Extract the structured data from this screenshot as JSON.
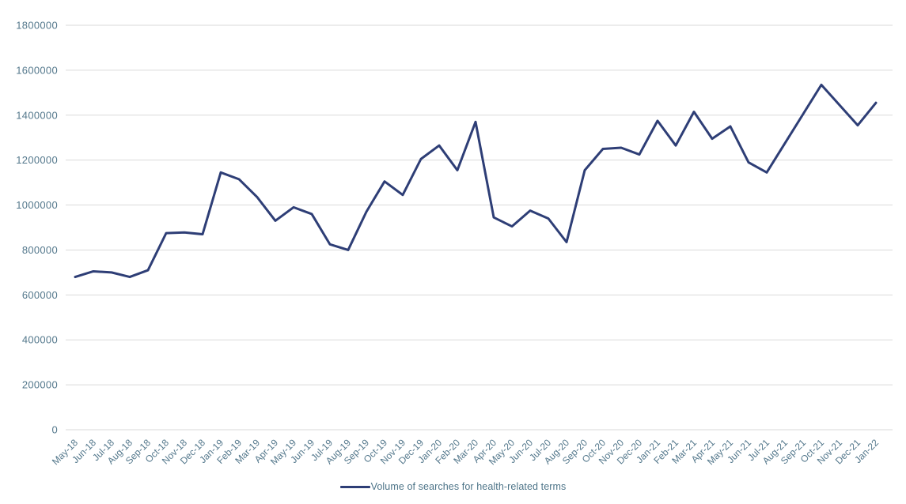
{
  "chart_data": {
    "type": "line",
    "title": "",
    "x": [
      "May-18",
      "Jun-18",
      "Jul-18",
      "Aug-18",
      "Sep-18",
      "Oct-18",
      "Nov-18",
      "Dec-18",
      "Jan-19",
      "Feb-19",
      "Mar-19",
      "Apr-19",
      "May-19",
      "Jun-19",
      "Jul-19",
      "Aug-19",
      "Sep-19",
      "Oct-19",
      "Nov-19",
      "Dec-19",
      "Jan-20",
      "Feb-20",
      "Mar-20",
      "Apr-20",
      "May-20",
      "Jun-20",
      "Jul-20",
      "Aug-20",
      "Sep-20",
      "Oct-20",
      "Nov-20",
      "Dec-20",
      "Jan-21",
      "Feb-21",
      "Mar-21",
      "Apr-21",
      "May-21",
      "Jun-21",
      "Jul-21",
      "Aug-21",
      "Sep-21",
      "Oct-21",
      "Nov-21",
      "Dec-21",
      "Jan-22"
    ],
    "series": [
      {
        "name": "Volume of searches for health-related terms",
        "color": "#2e3e76",
        "values": [
          680000,
          705000,
          700000,
          680000,
          710000,
          875000,
          878000,
          870000,
          1145000,
          1115000,
          1035000,
          930000,
          990000,
          960000,
          825000,
          800000,
          970000,
          1105000,
          1045000,
          1205000,
          1265000,
          1155000,
          1370000,
          945000,
          905000,
          975000,
          940000,
          835000,
          1155000,
          1250000,
          1255000,
          1225000,
          1375000,
          1265000,
          1415000,
          1295000,
          1350000,
          1190000,
          1145000,
          1275000,
          1405000,
          1535000,
          1445000,
          1355000,
          1455000
        ]
      }
    ],
    "ylim": [
      0,
      1800000
    ],
    "yticks": [
      0,
      200000,
      400000,
      600000,
      800000,
      1000000,
      1200000,
      1400000,
      1600000,
      1800000
    ],
    "grid": "horizontal",
    "legend_position": "bottom-center"
  },
  "style": {
    "background": "#ffffff",
    "gridline_color": "#dadada",
    "tick_text_color": "#54788c",
    "line_color": "#2e3e76"
  }
}
